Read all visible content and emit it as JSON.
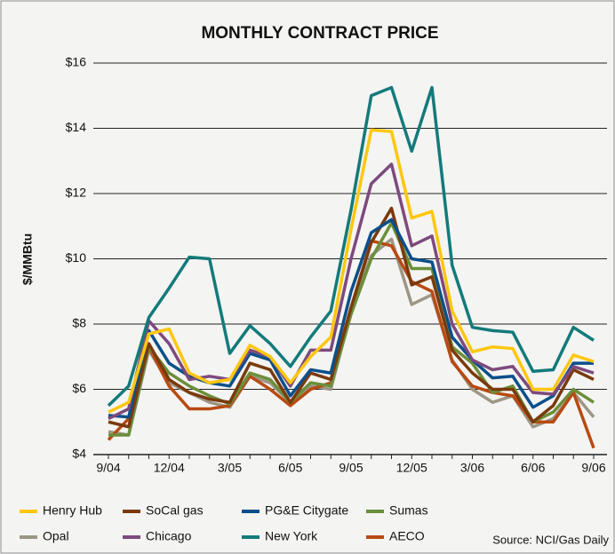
{
  "chart_data": {
    "type": "line",
    "title": "MONTHLY CONTRACT PRICE",
    "y_label": "$/MMBtu",
    "source": "Source: NCI/Gas Daily",
    "categories": [
      "9/04",
      null,
      null,
      "12/04",
      null,
      null,
      "3/05",
      null,
      null,
      "6/05",
      null,
      null,
      "9/05",
      null,
      null,
      "12/05",
      null,
      null,
      "3/06",
      null,
      null,
      "6/06",
      null,
      null,
      "9/06"
    ],
    "ylim": [
      4,
      16
    ],
    "yticks": [
      {
        "value": 4,
        "label": "$4"
      },
      {
        "value": 6,
        "label": "$6"
      },
      {
        "value": 8,
        "label": "$8"
      },
      {
        "value": 10,
        "label": "$10"
      },
      {
        "value": 12,
        "label": "$12"
      },
      {
        "value": 14,
        "label": "$14"
      },
      {
        "value": 16,
        "label": "$16"
      }
    ],
    "grid": true,
    "series": [
      {
        "name": "Henry Hub",
        "color": "#fdc70f",
        "values": [
          5.3,
          5.6,
          7.7,
          7.85,
          6.5,
          6.2,
          6.3,
          7.35,
          7.0,
          6.2,
          7.0,
          7.6,
          10.9,
          13.95,
          13.9,
          11.25,
          11.45,
          8.4,
          7.15,
          7.3,
          7.25,
          6.0,
          6.0,
          7.05,
          6.85
        ]
      },
      {
        "name": "SoCal gas",
        "color": "#7a3a0c",
        "values": [
          5.0,
          4.85,
          7.4,
          6.3,
          5.9,
          5.7,
          5.6,
          6.8,
          6.6,
          5.6,
          6.5,
          6.3,
          8.5,
          10.5,
          11.55,
          9.2,
          9.45,
          7.2,
          6.5,
          6.0,
          6.0,
          5.0,
          5.5,
          6.6,
          6.3
        ]
      },
      {
        "name": "PG&E Citygate",
        "color": "#0b4f8a",
        "values": [
          5.2,
          5.15,
          7.8,
          6.8,
          6.4,
          6.2,
          6.1,
          7.1,
          6.9,
          5.8,
          6.6,
          6.5,
          9.0,
          10.8,
          11.2,
          10.0,
          9.9,
          7.6,
          6.9,
          6.35,
          6.4,
          5.45,
          5.8,
          6.8,
          6.8
        ]
      },
      {
        "name": "Sumas",
        "color": "#6b8f3a",
        "values": [
          4.6,
          4.6,
          7.3,
          6.5,
          6.1,
          5.8,
          5.55,
          6.5,
          6.3,
          5.6,
          6.2,
          6.1,
          8.3,
          10.0,
          11.1,
          9.7,
          9.7,
          7.3,
          6.8,
          5.9,
          6.1,
          5.0,
          5.3,
          6.0,
          5.6
        ]
      },
      {
        "name": "Opal",
        "color": "#9c9686",
        "values": [
          4.7,
          4.6,
          7.2,
          6.2,
          5.9,
          5.6,
          5.45,
          6.4,
          6.2,
          5.6,
          6.1,
          6.0,
          8.4,
          10.1,
          10.6,
          8.6,
          8.9,
          6.9,
          6.0,
          5.6,
          5.8,
          4.85,
          5.1,
          5.9,
          5.15
        ]
      },
      {
        "name": "Chicago",
        "color": "#7d4a7d",
        "values": [
          5.1,
          5.4,
          8.1,
          7.4,
          6.3,
          6.4,
          6.3,
          7.2,
          7.0,
          6.1,
          7.2,
          7.2,
          10.0,
          12.3,
          12.9,
          10.4,
          10.7,
          8.0,
          6.9,
          6.6,
          6.7,
          5.9,
          5.85,
          6.7,
          6.5
        ]
      },
      {
        "name": "New York",
        "color": "#137a7a",
        "values": [
          5.5,
          6.1,
          8.2,
          9.1,
          10.05,
          10.0,
          7.1,
          7.95,
          7.4,
          6.7,
          7.6,
          8.4,
          11.5,
          15.0,
          15.25,
          13.3,
          15.25,
          9.8,
          7.9,
          7.8,
          7.75,
          6.55,
          6.6,
          7.9,
          7.5
        ]
      },
      {
        "name": "AECO",
        "color": "#b84a12",
        "values": [
          4.45,
          5.1,
          7.3,
          6.1,
          5.4,
          5.4,
          5.5,
          6.4,
          6.0,
          5.5,
          6.0,
          6.2,
          8.5,
          10.55,
          10.4,
          9.3,
          9.0,
          6.85,
          6.1,
          5.9,
          5.8,
          5.0,
          5.0,
          5.9,
          4.2
        ]
      }
    ]
  }
}
